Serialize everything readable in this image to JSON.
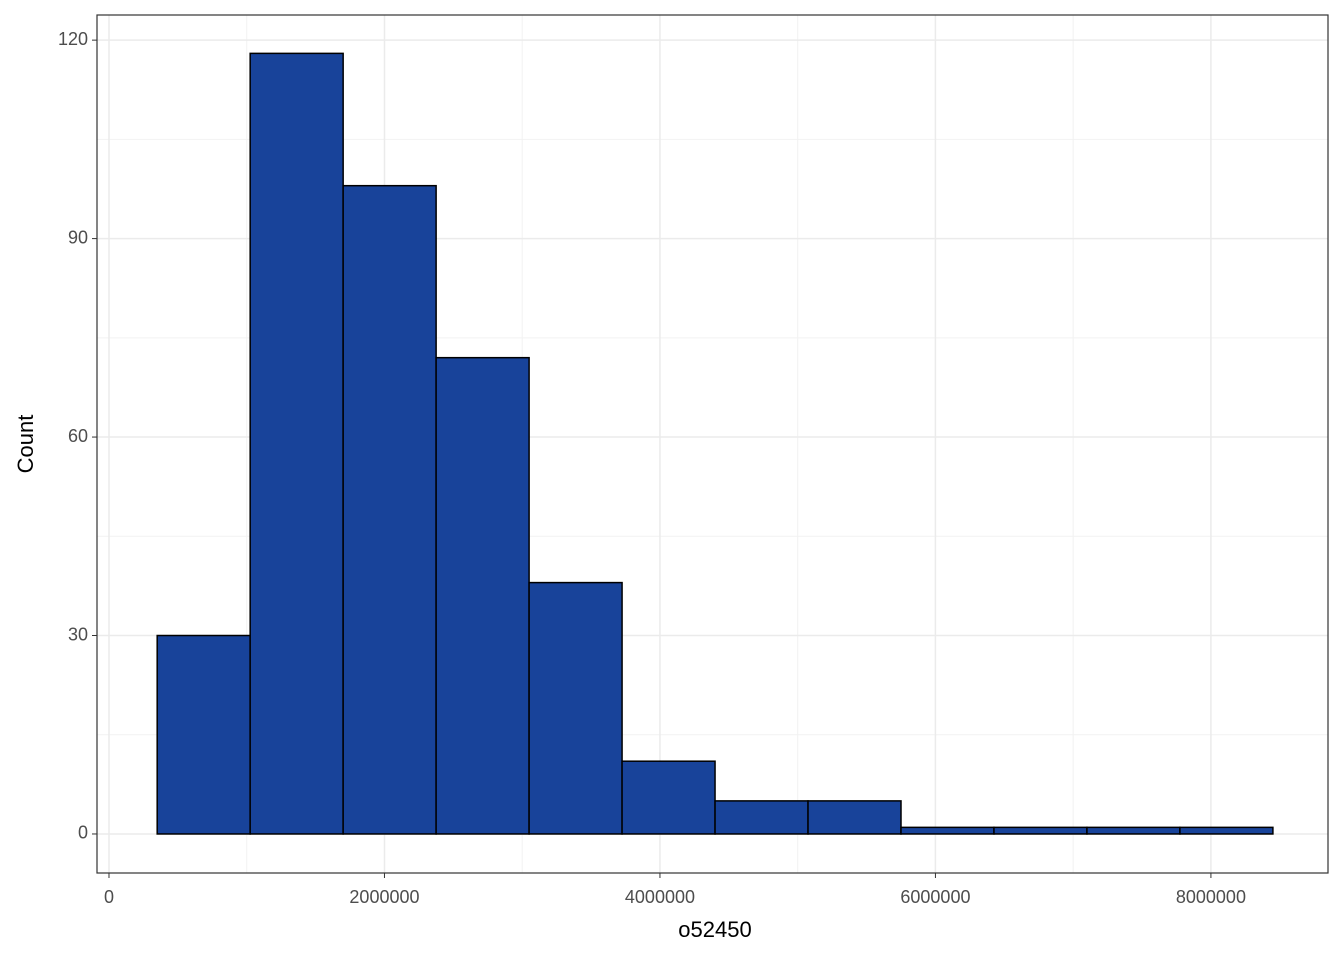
{
  "chart_data": {
    "type": "histogram",
    "x_label": "o52450",
    "y_label": "Count",
    "bins": [
      350000,
      1025000,
      1700000,
      2375000,
      3050000,
      3725000,
      4400000,
      5075000,
      5750000,
      6425000,
      7100000,
      7775000,
      8450000
    ],
    "counts": [
      30,
      118,
      98,
      72,
      38,
      11,
      5,
      5,
      1,
      1,
      1,
      1
    ],
    "color": "#18439a",
    "edge_color": "#000000",
    "xlim": [
      -87000,
      8850000
    ],
    "xticks": [
      0,
      2000000,
      4000000,
      6000000,
      8000000
    ],
    "ylim": [
      -5.9,
      123.8
    ],
    "yticks": [
      0,
      30,
      60,
      90,
      120
    ],
    "grid": true
  }
}
